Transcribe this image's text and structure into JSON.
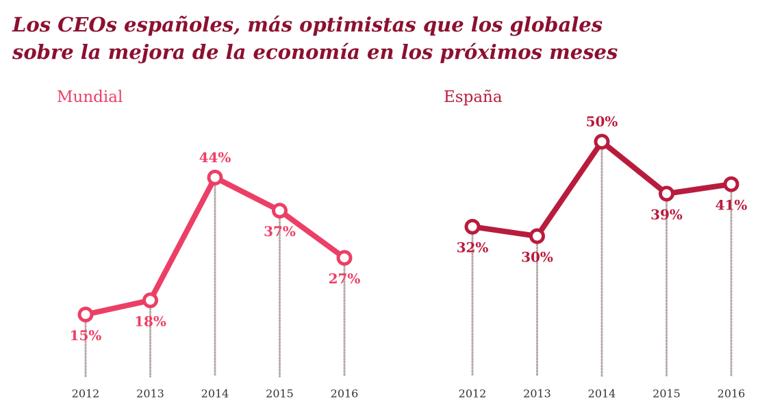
{
  "title": [
    "Los CEOs españoles, más optimistas que los globales",
    "sobre la mejora de la economía en los próximos meses"
  ],
  "chart_data": [
    {
      "type": "line",
      "title": "Mundial",
      "color": "#ec3f66",
      "categories": [
        "2012",
        "2013",
        "2014",
        "2015",
        "2016"
      ],
      "values": [
        15,
        18,
        44,
        37,
        27
      ],
      "value_labels": [
        "15%",
        "18%",
        "44%",
        "37%",
        "27%"
      ]
    },
    {
      "type": "line",
      "title": "España",
      "color": "#b81c3c",
      "categories": [
        "2012",
        "2013",
        "2014",
        "2015",
        "2016"
      ],
      "values": [
        32,
        30,
        50,
        39,
        41
      ],
      "value_labels": [
        "32%",
        "30%",
        "50%",
        "39%",
        "41%"
      ]
    }
  ]
}
